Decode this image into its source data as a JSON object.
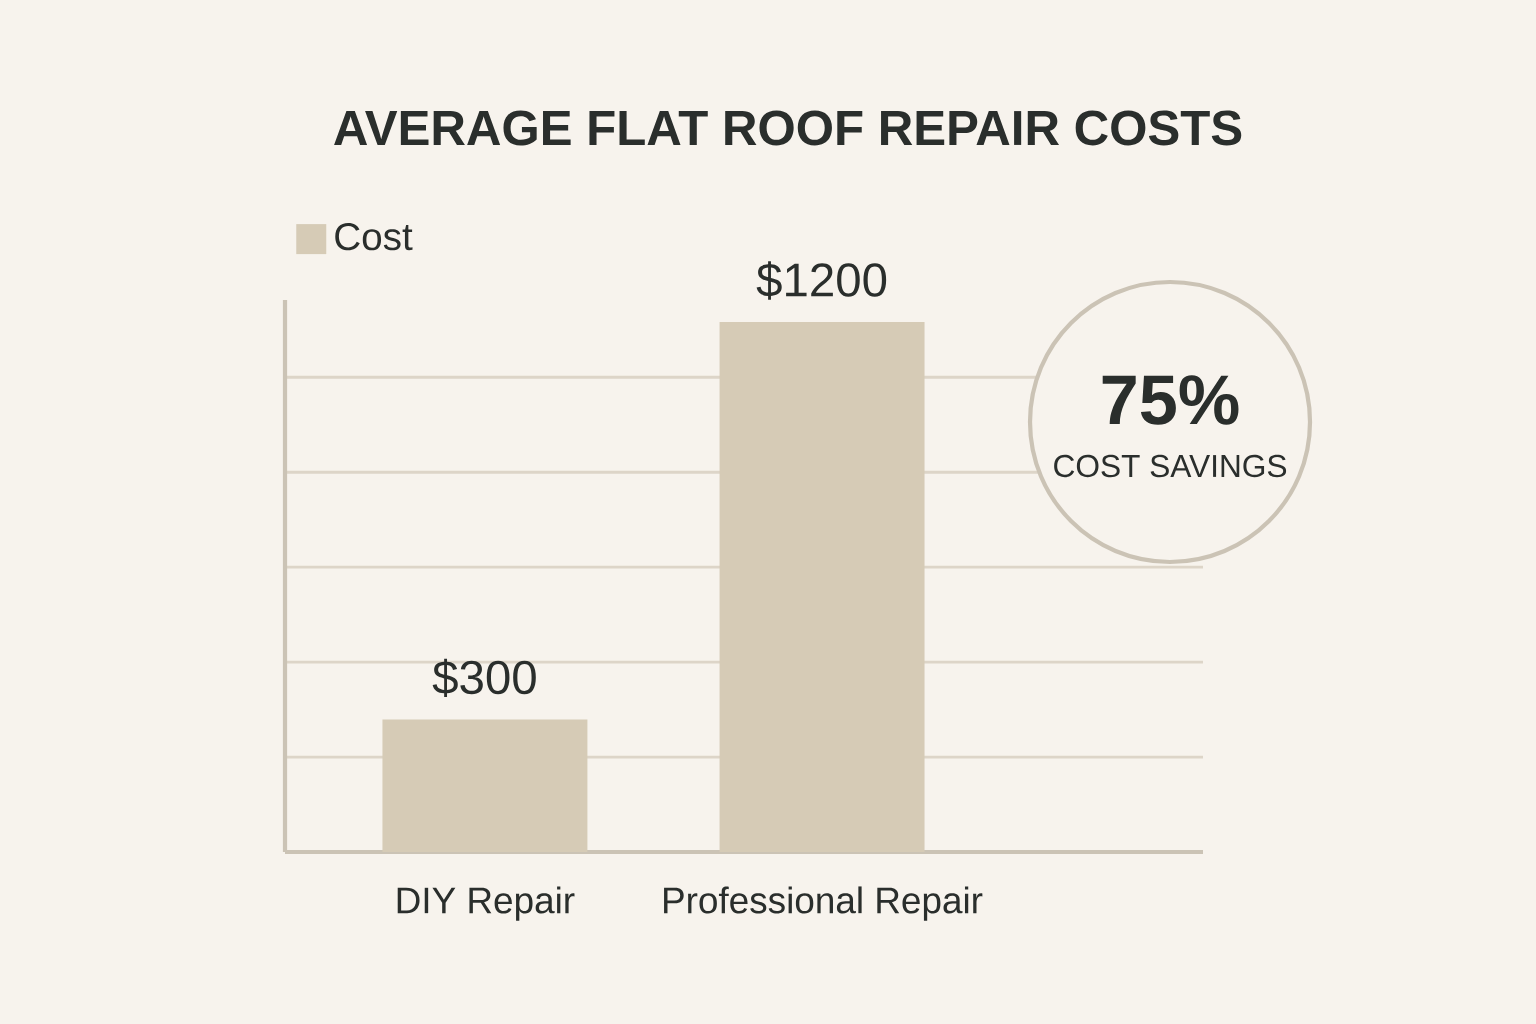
{
  "chart_data": {
    "type": "bar",
    "title": "AVERAGE FLAT ROOF REPAIR COSTS",
    "categories": [
      "DIY Repair",
      "Professional Repair"
    ],
    "series": [
      {
        "name": "Cost",
        "color": "#d6cbb6",
        "values": [
          300,
          1200
        ],
        "value_labels": [
          "$300",
          "$1200"
        ]
      }
    ],
    "ylim": [
      0,
      1250
    ],
    "yticks": [
      {
        "value": 215,
        "label": null
      },
      {
        "value": 430,
        "label": null
      },
      {
        "value": 645,
        "label": null
      },
      {
        "value": 860,
        "label": null
      },
      {
        "value": 1075,
        "label": null
      }
    ],
    "grid": "y",
    "legend": "top left",
    "tick_labels": "x",
    "annotations": [
      "75%",
      "COST SAVINGS"
    ]
  }
}
